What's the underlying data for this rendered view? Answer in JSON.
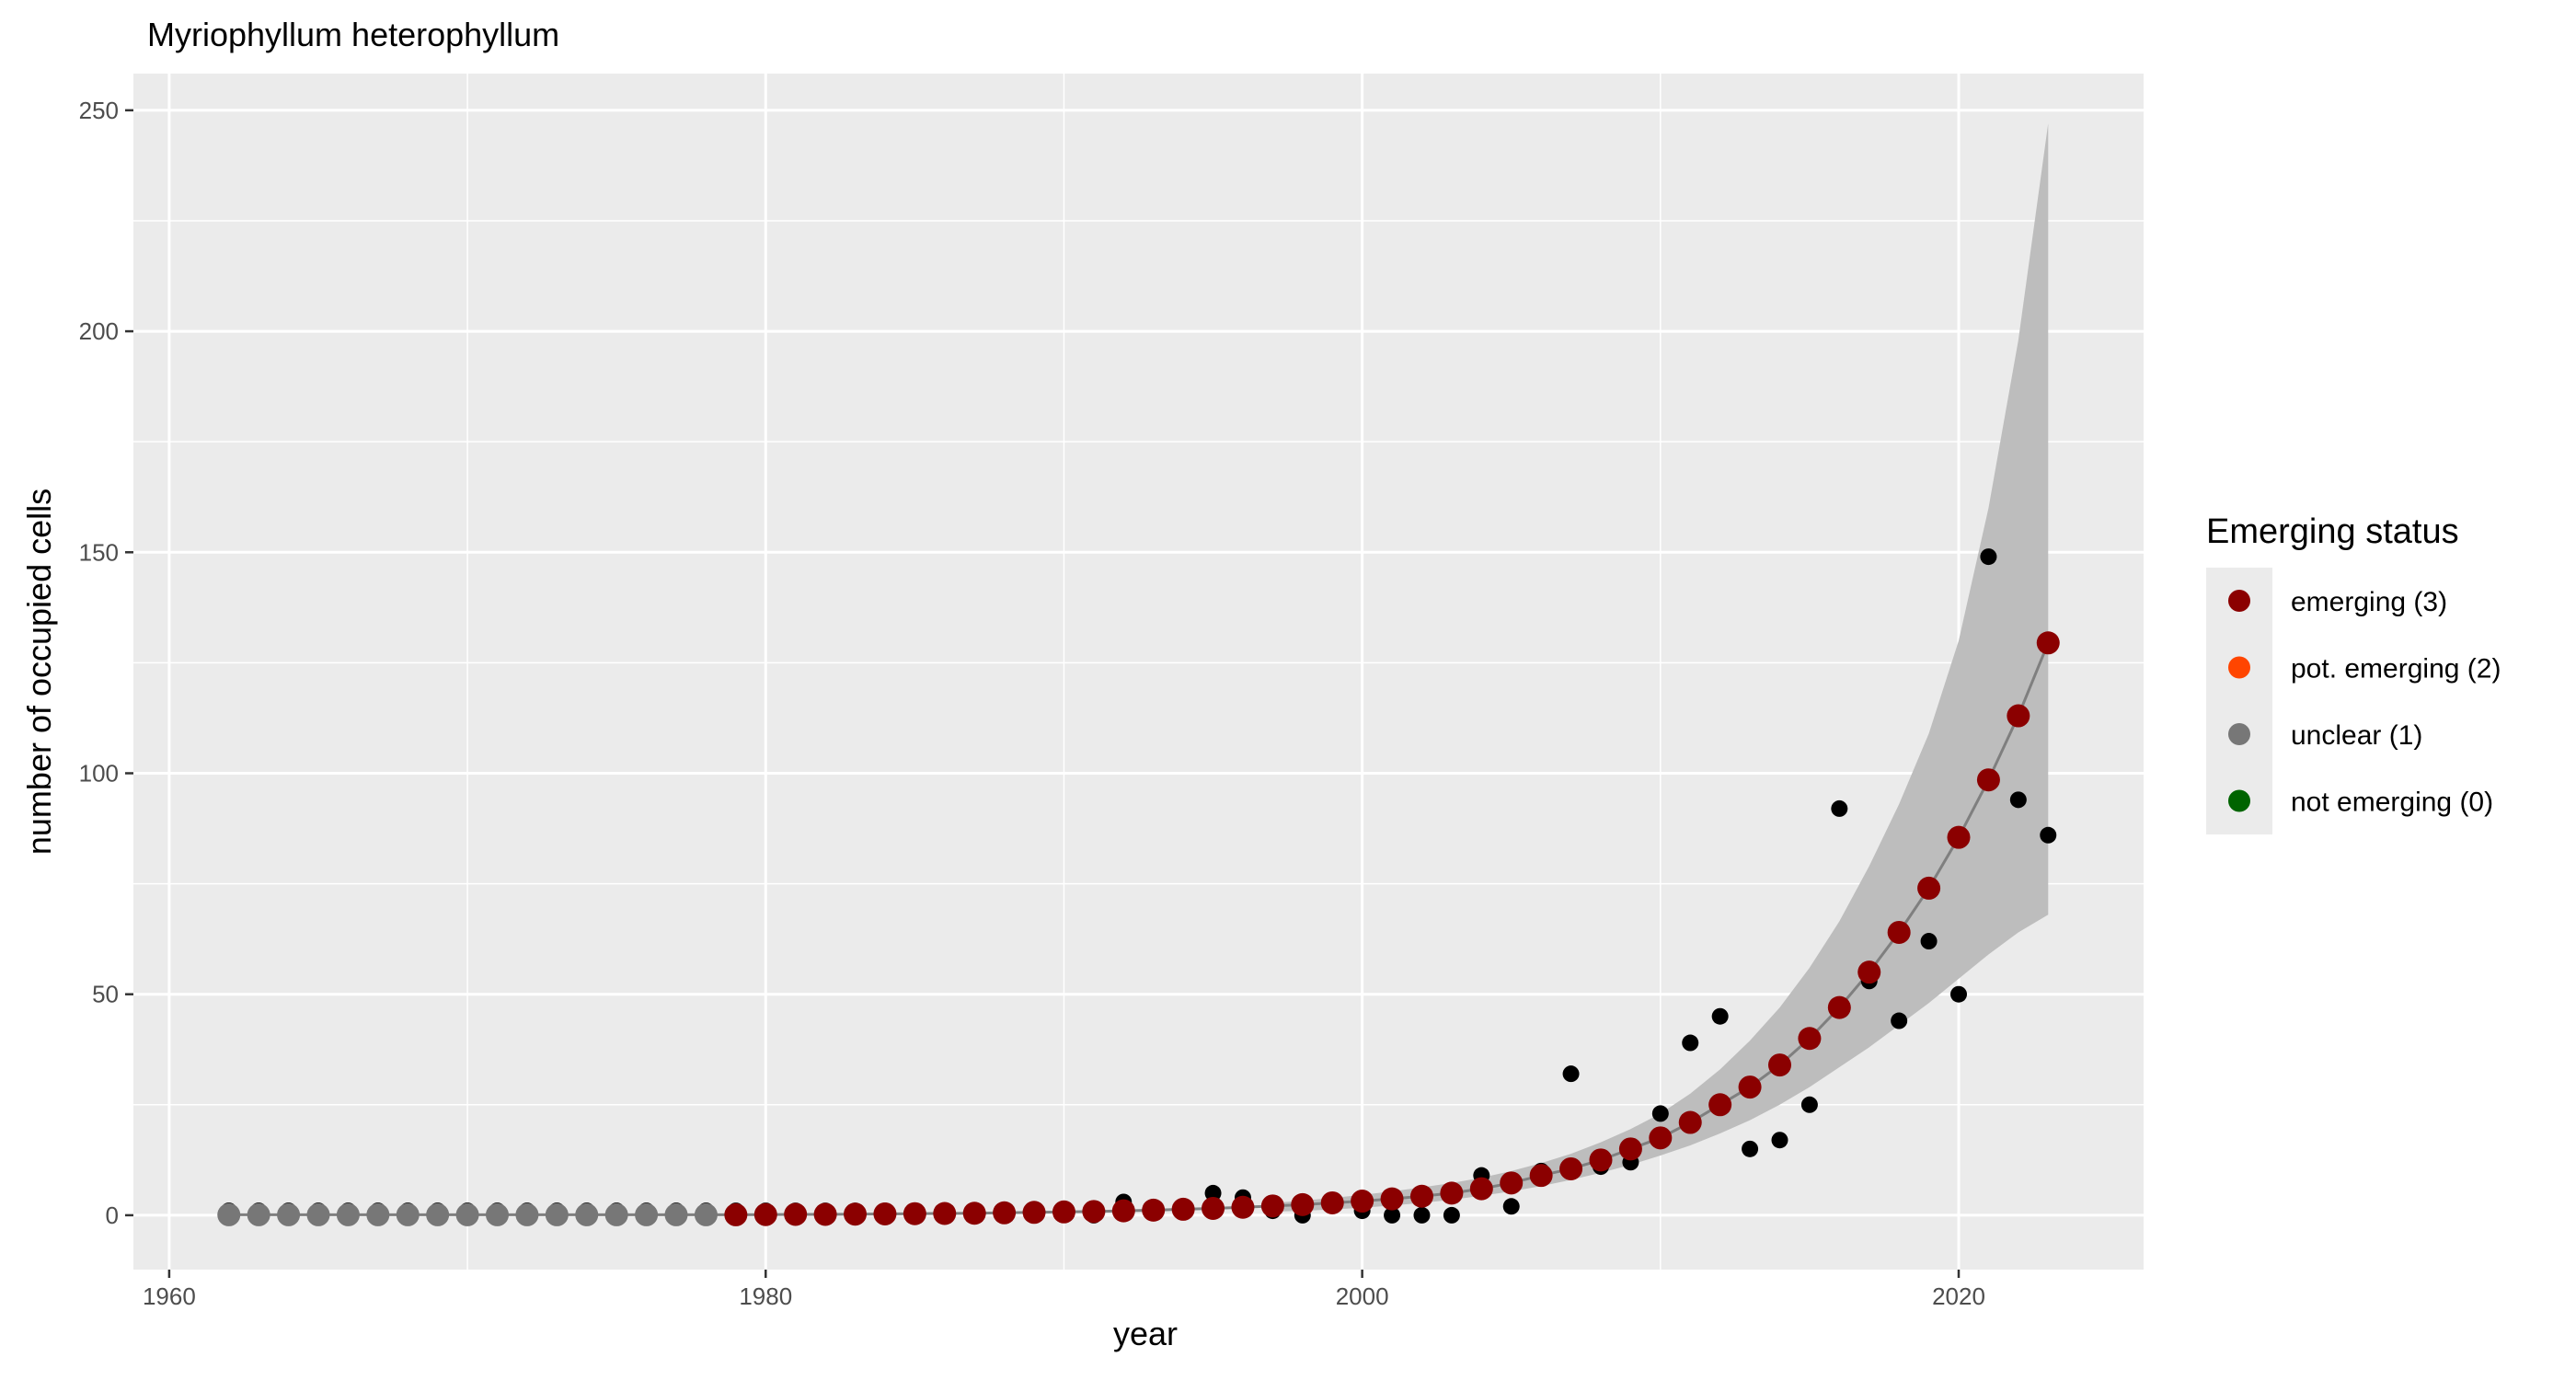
{
  "chart_data": {
    "type": "scatter",
    "title": "Myriophyllum heterophyllum",
    "xlabel": "year",
    "ylabel": "number of occupied cells",
    "xlim": [
      1958.8,
      2026.2
    ],
    "ylim": [
      -12.3,
      258.3
    ],
    "x_ticks": [
      1960,
      1980,
      2000,
      2020
    ],
    "y_ticks": [
      0,
      50,
      100,
      150,
      200,
      250
    ],
    "grid": true,
    "legend_position": "right",
    "legend": {
      "title": "Emerging status",
      "entries": [
        {
          "label": "emerging (3)",
          "color": "#8B0000"
        },
        {
          "label": "pot. emerging (2)",
          "color": "#FF4500"
        },
        {
          "label": "unclear (1)",
          "color": "#777777"
        },
        {
          "label": "not emerging (0)",
          "color": "#006400"
        }
      ]
    },
    "observed": {
      "color": "#000000",
      "points": [
        [
          1962,
          1
        ],
        [
          1963,
          1
        ],
        [
          1964,
          1
        ],
        [
          1965,
          1
        ],
        [
          1966,
          1
        ],
        [
          1967,
          1
        ],
        [
          1968,
          1
        ],
        [
          1969,
          1
        ],
        [
          1970,
          1
        ],
        [
          1971,
          1
        ],
        [
          1972,
          1
        ],
        [
          1973,
          1
        ],
        [
          1974,
          1
        ],
        [
          1975,
          1
        ],
        [
          1976,
          1
        ],
        [
          1977,
          1
        ],
        [
          1978,
          1
        ],
        [
          1979,
          1
        ],
        [
          1980,
          1
        ],
        [
          1981,
          1
        ],
        [
          1982,
          1
        ],
        [
          1983,
          1
        ],
        [
          1984,
          1
        ],
        [
          1985,
          1
        ],
        [
          1986,
          1
        ],
        [
          1987,
          1
        ],
        [
          1988,
          1
        ],
        [
          1989,
          1
        ],
        [
          1990,
          1
        ],
        [
          1991,
          0
        ],
        [
          1992,
          3
        ],
        [
          1993,
          1
        ],
        [
          1994,
          1
        ],
        [
          1995,
          5
        ],
        [
          1996,
          4
        ],
        [
          1997,
          1
        ],
        [
          1998,
          0
        ],
        [
          1999,
          3
        ],
        [
          2000,
          1
        ],
        [
          2001,
          0
        ],
        [
          2002,
          0
        ],
        [
          2003,
          0
        ],
        [
          2004,
          9
        ],
        [
          2005,
          2
        ],
        [
          2006,
          10
        ],
        [
          2007,
          32
        ],
        [
          2008,
          11
        ],
        [
          2009,
          12
        ],
        [
          2010,
          23
        ],
        [
          2011,
          39
        ],
        [
          2012,
          45
        ],
        [
          2013,
          15
        ],
        [
          2014,
          17
        ],
        [
          2015,
          25
        ],
        [
          2016,
          92
        ],
        [
          2017,
          53
        ],
        [
          2018,
          44
        ],
        [
          2019,
          62
        ],
        [
          2020,
          50
        ],
        [
          2021,
          149
        ],
        [
          2022,
          94
        ],
        [
          2023,
          86
        ]
      ]
    },
    "fitted": {
      "x": [
        1962,
        1963,
        1964,
        1965,
        1966,
        1967,
        1968,
        1969,
        1970,
        1971,
        1972,
        1973,
        1974,
        1975,
        1976,
        1977,
        1978,
        1979,
        1980,
        1981,
        1982,
        1983,
        1984,
        1985,
        1986,
        1987,
        1988,
        1989,
        1990,
        1991,
        1992,
        1993,
        1994,
        1995,
        1996,
        1997,
        1998,
        1999,
        2000,
        2001,
        2002,
        2003,
        2004,
        2005,
        2006,
        2007,
        2008,
        2009,
        2010,
        2011,
        2012,
        2013,
        2014,
        2015,
        2016,
        2017,
        2018,
        2019,
        2020,
        2021,
        2022,
        2023
      ],
      "y": [
        0.1,
        0.1,
        0.1,
        0.1,
        0.1,
        0.1,
        0.1,
        0.1,
        0.1,
        0.1,
        0.1,
        0.1,
        0.1,
        0.1,
        0.1,
        0.1,
        0.1,
        0.1,
        0.15,
        0.2,
        0.2,
        0.25,
        0.3,
        0.35,
        0.4,
        0.45,
        0.55,
        0.65,
        0.75,
        0.85,
        1.0,
        1.15,
        1.35,
        1.55,
        1.8,
        2.1,
        2.4,
        2.8,
        3.2,
        3.7,
        4.3,
        5.0,
        6.0,
        7.3,
        9.0,
        10.5,
        12.5,
        15.0,
        17.5,
        21.0,
        25.0,
        29.0,
        34.0,
        40.0,
        47.0,
        55.0,
        64.0,
        74.0,
        85.5,
        98.5,
        113.0,
        129.5
      ],
      "status": [
        1,
        1,
        1,
        1,
        1,
        1,
        1,
        1,
        1,
        1,
        1,
        1,
        1,
        1,
        1,
        1,
        1,
        3,
        3,
        3,
        3,
        3,
        3,
        3,
        3,
        3,
        3,
        3,
        3,
        3,
        3,
        3,
        3,
        3,
        3,
        3,
        3,
        3,
        3,
        3,
        3,
        3,
        3,
        3,
        3,
        3,
        3,
        3,
        3,
        3,
        3,
        3,
        3,
        3,
        3,
        3,
        3,
        3,
        3,
        3,
        3,
        3
      ],
      "line_color": "#7f7f7f"
    },
    "ribbon": {
      "color": "#bdbdbd",
      "x": [
        1997,
        1998,
        1999,
        2000,
        2001,
        2002,
        2003,
        2004,
        2005,
        2006,
        2007,
        2008,
        2009,
        2010,
        2011,
        2012,
        2013,
        2014,
        2015,
        2016,
        2017,
        2018,
        2019,
        2020,
        2021,
        2022,
        2023
      ],
      "lower": [
        0.8,
        1.0,
        1.3,
        1.7,
        2.2,
        2.8,
        3.5,
        4.4,
        5.4,
        6.6,
        8.0,
        9.6,
        11.4,
        13.5,
        15.8,
        18.5,
        21.5,
        25.0,
        29.0,
        33.5,
        38.0,
        43.0,
        48.0,
        53.5,
        59.0,
        64.0,
        68.0
      ],
      "upper": [
        2.8,
        3.3,
        3.9,
        4.6,
        5.4,
        6.3,
        7.3,
        8.5,
        10.0,
        11.8,
        13.9,
        16.5,
        19.5,
        23.0,
        27.5,
        33.0,
        39.5,
        47.0,
        56.0,
        66.5,
        79.0,
        93.0,
        109.0,
        130.0,
        160.0,
        198.0,
        247.0
      ]
    }
  }
}
